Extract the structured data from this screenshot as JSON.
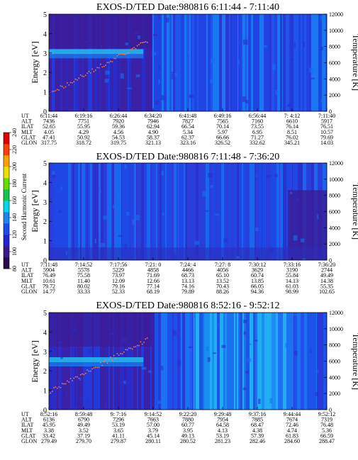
{
  "colorbar": {
    "label": "Second Harmonic Current",
    "ticks": [
      "80",
      "100",
      "120",
      "140",
      "160",
      "180",
      "200",
      "220",
      "240"
    ],
    "range": [
      80,
      240
    ],
    "colors": [
      "#2a0a4a",
      "#3a1a8a",
      "#2424d0",
      "#1c4cf0",
      "#1a86f4",
      "#00d8ec",
      "#10c850",
      "#60e000",
      "#f0e000",
      "#ffa000",
      "#ff4000",
      "#e00000"
    ]
  },
  "chart_data": [
    {
      "type": "heatmap",
      "title": "EXOS-D/TED   Date:980816  6:11:44 - 7:11:40",
      "ylabel": "Energy [eV]",
      "y2label": "Temperature [K]",
      "ylim": [
        0,
        5
      ],
      "y2lim": [
        0,
        12000
      ],
      "yticks": [
        "0",
        "1",
        "2",
        "3",
        "4",
        "5"
      ],
      "y2ticks": [
        "0",
        "2000",
        "4000",
        "6000",
        "8000",
        "10000",
        "12000"
      ],
      "table": {
        "row_labels": [
          "UT",
          "ALT",
          "ILAT",
          "MLT",
          "GLAT",
          "GLON"
        ],
        "columns": [
          [
            "6:11:44",
            "7436",
            "52.65",
            "4.05",
            "47.41",
            "317.75"
          ],
          [
            "6:19:16",
            "7751",
            "55.95",
            "4.29",
            "50.92",
            "318.72"
          ],
          [
            "6:26:44",
            "7920",
            "59.36",
            "4.56",
            "54.53",
            "319.75"
          ],
          [
            "6:34:20",
            "7946",
            "62.94",
            "4.90",
            "58.37",
            "321.13"
          ],
          [
            "6:41:48",
            "7827",
            "66.54",
            "5.34",
            "62.37",
            "323.16"
          ],
          [
            "6:49:16",
            "7565",
            "70.14",
            "5.97",
            "66.66",
            "326.52"
          ],
          [
            "6:56:44",
            "7160",
            "73.55",
            "6.95",
            "71.27",
            "332.62"
          ],
          [
            "7: 4:12",
            "6610",
            "76.14",
            "8.51",
            "76.02",
            "345.21"
          ],
          [
            "7:11:40",
            "5917",
            "76.51",
            "10.57",
            "79.69",
            "14.03"
          ]
        ]
      }
    },
    {
      "type": "heatmap",
      "title": "EXOS-D/TED   Date:980816  7:11:48 - 7:36:20",
      "ylabel": "Energy [eV]",
      "y2label": "Temperature [K]",
      "ylim": [
        0,
        5
      ],
      "y2lim": [
        0,
        12000
      ],
      "yticks": [
        "0",
        "1",
        "2",
        "3",
        "4",
        "5"
      ],
      "y2ticks": [
        "0",
        "2000",
        "4000",
        "6000",
        "8000",
        "10000",
        "12000"
      ],
      "table": {
        "row_labels": [
          "UT",
          "ALT",
          "ILAT",
          "MLT",
          "GLAT",
          "GLON"
        ],
        "columns": [
          [
            "7:11:48",
            "5904",
            "76.49",
            "10.61",
            "79.72",
            "14.77"
          ],
          [
            "7:14:52",
            "5578",
            "75.58",
            "11.40",
            "80.02",
            "33.33"
          ],
          [
            "7:17:56",
            "5229",
            "73.97",
            "12.09",
            "79.16",
            "52.33"
          ],
          [
            "7:21: 0",
            "4858",
            "71.69",
            "12.66",
            "77.14",
            "68.19"
          ],
          [
            "7:24: 4",
            "4466",
            "68.73",
            "13.13",
            "74.16",
            "79.89"
          ],
          [
            "7:27: 8",
            "4056",
            "65.10",
            "13.52",
            "70.43",
            "88.26"
          ],
          [
            "7:30:12",
            "3629",
            "60.74",
            "13.85",
            "66.05",
            "94.36"
          ],
          [
            "7:33:16",
            "3190",
            "55.84",
            "14.13",
            "61.03",
            "98.99"
          ],
          [
            "7:36:20",
            "2744",
            "49.49",
            "14.38",
            "55.35",
            "102.65"
          ]
        ]
      }
    },
    {
      "type": "heatmap",
      "title": "EXOS-D/TED   Date:980816  8:52:16 - 9:52:12",
      "ylabel": "Energy [eV]",
      "y2label": "Temperature [K]",
      "ylim": [
        0,
        5
      ],
      "y2lim": [
        0,
        12000
      ],
      "yticks": [
        "0",
        "1",
        "2",
        "3",
        "4",
        "5"
      ],
      "y2ticks": [
        "0",
        "2000",
        "4000",
        "6000",
        "8000",
        "10000",
        "12000"
      ],
      "table": {
        "row_labels": [
          "UT",
          "ALT",
          "ILAT",
          "MLT",
          "GLAT",
          "GLON"
        ],
        "columns": [
          [
            "8:52:16",
            "6136",
            "45.95",
            "3.38",
            "33.42",
            "279.49"
          ],
          [
            "8:59:48",
            "6790",
            "49.49",
            "3.52",
            "37.19",
            "279.70"
          ],
          [
            "9: 7:16",
            "7296",
            "53.19",
            "3.65",
            "41.11",
            "279.87"
          ],
          [
            "9:14:52",
            "7663",
            "57.00",
            "3.79",
            "45.14",
            "280.11"
          ],
          [
            "9:22:20",
            "7880",
            "60.77",
            "3.95",
            "49.13",
            "280.52"
          ],
          [
            "9:29:48",
            "7954",
            "64.58",
            "4.13",
            "53.19",
            "281.23"
          ],
          [
            "9:37:16",
            "7885",
            "68.47",
            "4.38",
            "57.39",
            "282.46"
          ],
          [
            "9:44:44",
            "7674",
            "72.46",
            "4.74",
            "61.83",
            "284.60"
          ],
          [
            "9:52:12",
            "7319",
            "76.48",
            "5.36",
            "66.59",
            "288.47"
          ]
        ]
      }
    }
  ]
}
